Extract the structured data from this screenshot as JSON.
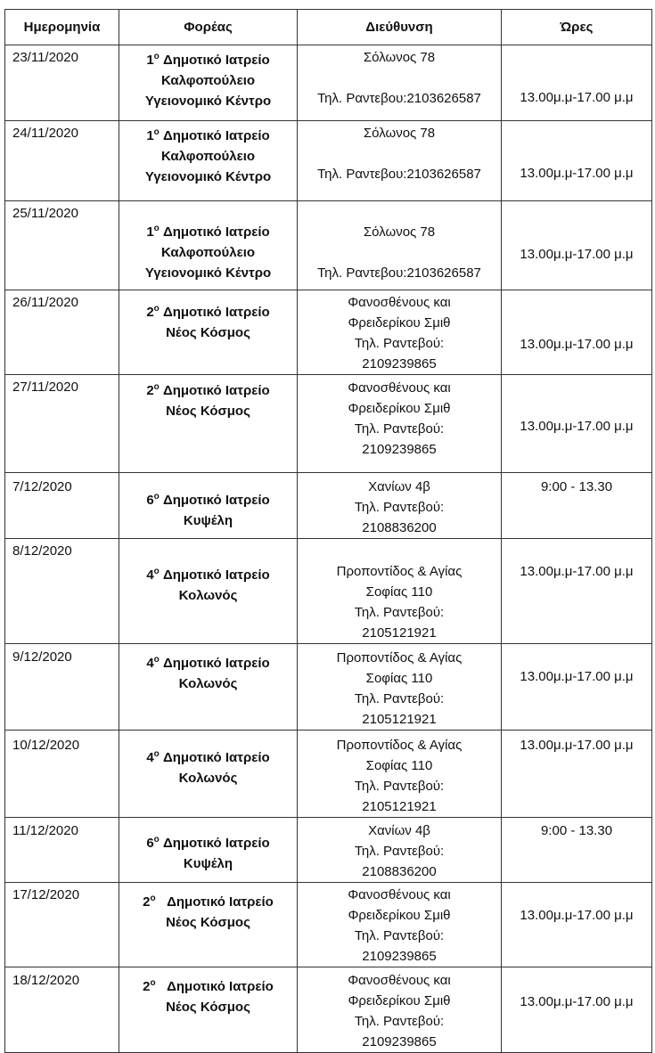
{
  "headers": [
    "Ημερομηνία",
    "Φορέας",
    "Διεύθυνση",
    "Ώρες"
  ],
  "rows": [
    {
      "date": "23/11/2020",
      "ordinal": "1",
      "ord_suffix": "ο",
      "foreas": [
        "Δημοτικό Ιατρείο",
        "Καλφοπούλειο",
        "Υγειονομικό Κέντρο"
      ],
      "address": [
        "Σόλωνος 78",
        "",
        "Τηλ. Ραντεβου:2103626587"
      ],
      "hours": "13.00μ.μ-17.00 μ.μ"
    },
    {
      "date": "24/11/2020",
      "ordinal": "1",
      "ord_suffix": "ο",
      "foreas": [
        "Δημοτικό Ιατρείο",
        "Καλφοπούλειο",
        "Υγειονομικό Κέντρο"
      ],
      "address": [
        "Σόλωνος 78",
        "",
        "Τηλ. Ραντεβου:2103626587"
      ],
      "hours": "13.00μ.μ-17.00 μ.μ"
    },
    {
      "date": "25/11/2020",
      "ordinal": "1",
      "ord_suffix": "ο",
      "foreas": [
        "Δημοτικό Ιατρείο",
        "Καλφοπούλειο",
        "Υγειονομικό Κέντρο"
      ],
      "address": [
        "Σόλωνος 78",
        "",
        "Τηλ. Ραντεβου:2103626587"
      ],
      "hours": "13.00μ.μ-17.00 μ.μ"
    },
    {
      "date": "26/11/2020",
      "ordinal": "2",
      "ord_suffix": "ο",
      "foreas": [
        "Δημοτικό Ιατρείο",
        "Νέος Κόσμος"
      ],
      "address": [
        "Φανοσθένους και",
        "Φρειδερίκου Σμιθ",
        "Τηλ. Ραντεβού:",
        "2109239865"
      ],
      "hours": "13.00μ.μ-17.00 μ.μ"
    },
    {
      "date": "27/11/2020",
      "ordinal": "2",
      "ord_suffix": "ο",
      "foreas": [
        "Δημοτικό Ιατρείο",
        "Νέος Κόσμος"
      ],
      "address": [
        "Φανοσθένους και",
        "Φρειδερίκου Σμιθ",
        "Τηλ. Ραντεβού:",
        "2109239865"
      ],
      "hours": "13.00μ.μ-17.00 μ.μ"
    },
    {
      "date": "7/12/2020",
      "ordinal": "6",
      "ord_suffix": "ο",
      "foreas": [
        "Δημοτικό Ιατρείο",
        "Κυψέλη"
      ],
      "address": [
        "Χανίων 4β",
        "Τηλ. Ραντεβού:",
        "2108836200"
      ],
      "hours": "9:00 - 13.30"
    },
    {
      "date": "8/12/2020",
      "ordinal": "4",
      "ord_suffix": "ο",
      "foreas": [
        "Δημοτικό Ιατρείο",
        "Κολωνός"
      ],
      "address": [
        "Προποντίδος & Αγίας",
        "Σοφίας 110",
        "Τηλ. Ραντεβού:",
        "2105121921"
      ],
      "hours": "13.00μ.μ-17.00 μ.μ"
    },
    {
      "date": "9/12/2020",
      "ordinal": "4",
      "ord_suffix": "ο",
      "foreas": [
        "Δημοτικό Ιατρείο",
        "Κολωνός"
      ],
      "address": [
        "Προποντίδος & Αγίας",
        "Σοφίας 110",
        "Τηλ. Ραντεβού:",
        "2105121921"
      ],
      "hours": "13.00μ.μ-17.00 μ.μ"
    },
    {
      "date": "10/12/2020",
      "ordinal": "4",
      "ord_suffix": "ο",
      "foreas": [
        "Δημοτικό Ιατρείο",
        "Κολωνός"
      ],
      "address": [
        "Προποντίδος & Αγίας",
        "Σοφίας 110",
        "Τηλ. Ραντεβού:",
        "2105121921"
      ],
      "hours": "13.00μ.μ-17.00 μ.μ"
    },
    {
      "date": "11/12/2020",
      "ordinal": "6",
      "ord_suffix": "ο",
      "foreas": [
        "Δημοτικό Ιατρείο",
        "Κυψέλη"
      ],
      "address": [
        "Χανίων 4β",
        "Τηλ. Ραντεβού:",
        "2108836200"
      ],
      "hours": "9:00 - 13.30"
    },
    {
      "date": "17/12/2020",
      "ordinal": "2",
      "ord_suffix": "ο",
      "foreas": [
        "Δημοτικό Ιατρείο",
        "Νέος Κόσμος"
      ],
      "address": [
        "Φανοσθένους και",
        "Φρειδερίκου Σμιθ",
        "Τηλ. Ραντεβού:",
        "2109239865"
      ],
      "hours": "13.00μ.μ-17.00 μ.μ"
    },
    {
      "date": "18/12/2020",
      "ordinal": "2",
      "ord_suffix": "ο",
      "foreas": [
        "Δημοτικό Ιατρείο",
        "Νέος Κόσμος"
      ],
      "address": [
        "Φανοσθένους και",
        "Φρειδερίκου Σμιθ",
        "Τηλ. Ραντεβού:",
        "2109239865"
      ],
      "hours": "13.00μ.μ-17.00 μ.μ"
    }
  ]
}
